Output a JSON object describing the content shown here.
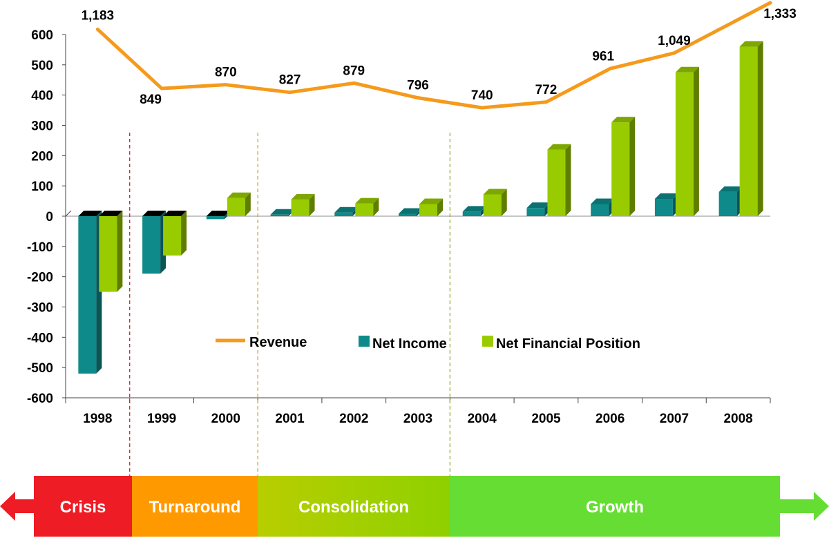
{
  "chart_data": {
    "type": "bar",
    "categories": [
      "1998",
      "1999",
      "2000",
      "2001",
      "2002",
      "2003",
      "2004",
      "2005",
      "2006",
      "2007",
      "2008"
    ],
    "series": [
      {
        "name": "Revenue",
        "kind": "line",
        "color": "#f59a1c",
        "values": [
          1183,
          849,
          870,
          827,
          879,
          796,
          740,
          772,
          961,
          1049,
          1333
        ],
        "labels": [
          "1,183",
          "849",
          "870",
          "827",
          "879",
          "796",
          "740",
          "772",
          "961",
          "1,049",
          "1,333"
        ]
      },
      {
        "name": "Net Income",
        "kind": "bar",
        "color": "#0f8a8a",
        "values": [
          -520,
          -190,
          -10,
          5,
          12,
          8,
          15,
          27,
          40,
          57,
          80
        ]
      },
      {
        "name": "Net Financial Position",
        "kind": "bar",
        "color": "#99cc00",
        "values": [
          -250,
          -130,
          60,
          55,
          42,
          40,
          72,
          220,
          310,
          475,
          560
        ]
      }
    ],
    "ylim": [
      -600,
      600
    ],
    "yticks": [
      600,
      500,
      400,
      300,
      200,
      100,
      0,
      -100,
      -200,
      -300,
      -400,
      -500,
      -600
    ],
    "ytick_labels": [
      "600",
      "500",
      "400",
      "300",
      "200",
      "100",
      "0",
      "-100",
      "-200",
      "-300",
      "-400",
      "-500",
      "-600"
    ],
    "legend": "middle",
    "phases": [
      {
        "label": "Crisis",
        "color": "#ee1c25",
        "from": "1998",
        "to": "1998"
      },
      {
        "label": "Turnaround",
        "color": "#ff9900",
        "from": "1999",
        "to": "2000"
      },
      {
        "label": "Consolidation",
        "color": "#99cc00",
        "from": "2001",
        "to": "2003"
      },
      {
        "label": "Growth",
        "color": "#66dd33",
        "from": "2004",
        "to": "2008"
      }
    ]
  }
}
